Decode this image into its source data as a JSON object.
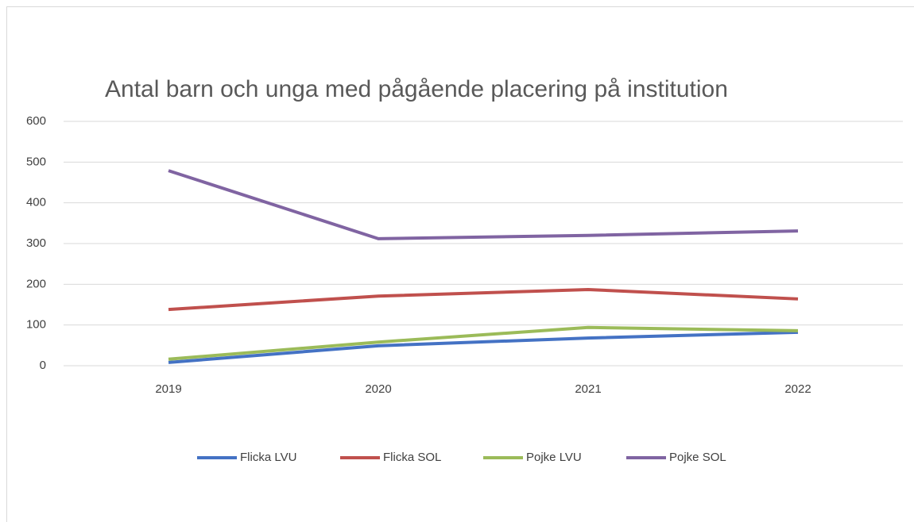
{
  "chart_data": {
    "type": "line",
    "title": "Antal barn och unga med pågående placering på institution",
    "categories": [
      "2019",
      "2020",
      "2021",
      "2022"
    ],
    "series": [
      {
        "name": "Flicka LVU",
        "color": "#4472c4",
        "values": [
          8,
          49,
          68,
          82
        ]
      },
      {
        "name": "Flicka SOL",
        "color": "#c0504d",
        "values": [
          138,
          171,
          187,
          164
        ]
      },
      {
        "name": "Pojke LVU",
        "color": "#9bbb59",
        "values": [
          16,
          58,
          94,
          86
        ]
      },
      {
        "name": "Pojke SOL",
        "color": "#8064a2",
        "values": [
          479,
          312,
          320,
          331
        ]
      }
    ],
    "ylim": [
      0,
      600
    ],
    "yticks": [
      0,
      100,
      200,
      300,
      400,
      500,
      600
    ],
    "grid": true,
    "legend": "bottom"
  }
}
